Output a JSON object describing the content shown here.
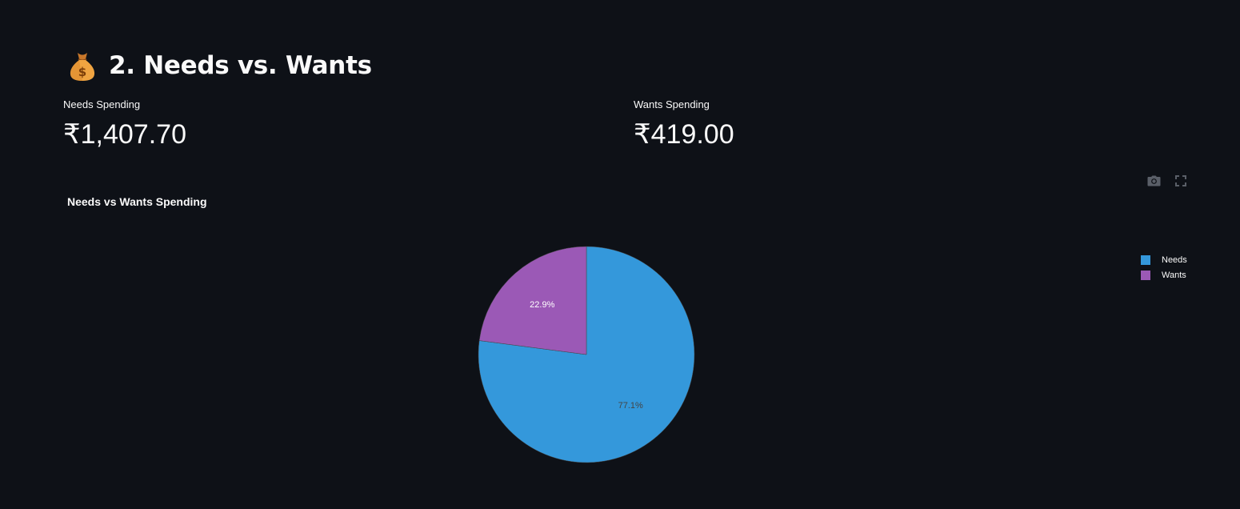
{
  "section": {
    "title": "2. Needs vs. Wants",
    "icon": "money-bag-icon"
  },
  "metrics": {
    "needs": {
      "label": "Needs Spending",
      "value": "₹1,407.70"
    },
    "wants": {
      "label": "Wants Spending",
      "value": "₹419.00"
    }
  },
  "toolbar": {
    "icons": [
      "camera-icon",
      "fullscreen-icon"
    ]
  },
  "chart_data": {
    "type": "pie",
    "title": "Needs vs Wants Spending",
    "categories": [
      "Needs",
      "Wants"
    ],
    "values": [
      1407.7,
      419.0
    ],
    "percent_labels": [
      "77.1%",
      "22.9%"
    ],
    "colors": [
      "#3498db",
      "#9b59b6"
    ],
    "label_colors": [
      "#444444",
      "#ffffff"
    ],
    "legend_position": "top-right"
  }
}
